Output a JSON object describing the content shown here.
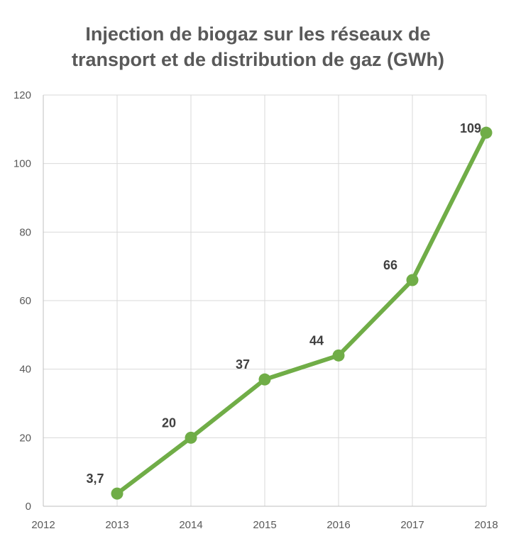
{
  "chart_data": {
    "type": "line",
    "title_lines": [
      "Injection de biogaz sur les réseaux de",
      "transport et de distribution de gaz (GWh)"
    ],
    "x": [
      2013,
      2014,
      2015,
      2016,
      2017,
      2018
    ],
    "x_ticks": [
      "2012",
      "2013",
      "2014",
      "2015",
      "2016",
      "2017",
      "2018"
    ],
    "xlim": [
      2012,
      2018
    ],
    "y_ticks": [
      "0",
      "20",
      "40",
      "60",
      "80",
      "100",
      "120"
    ],
    "ylim": [
      0,
      120
    ],
    "grid": true,
    "legend": "none",
    "series": [
      {
        "values": [
          3.7,
          20,
          37,
          44,
          66,
          109
        ],
        "labels": [
          "3,7",
          "20",
          "37",
          "44",
          "66",
          "109"
        ],
        "color": "#70ad47"
      }
    ],
    "colors": {
      "line": "#70ad47",
      "grid": "#d9d9d9",
      "axis": "#bfbfbf",
      "title": "#595959",
      "tick_text": "#595959",
      "label_text": "#404040"
    }
  }
}
